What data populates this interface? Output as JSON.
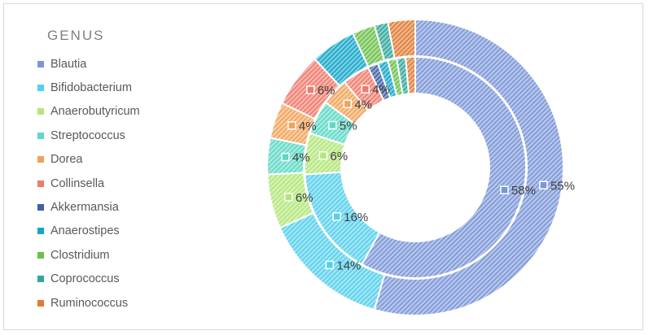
{
  "chart_data": {
    "type": "doughnut",
    "title": "",
    "legend_title": "GENUS",
    "legend_position": "left",
    "categories": [
      "Blautia",
      "Bifidobacterium",
      "Anaerobutyricum",
      "Streptococcus",
      "Dorea",
      "Collinsella",
      "Akkermansia",
      "Anaerostipes",
      "Clostridium",
      "Coprococcus",
      "Ruminococcus"
    ],
    "colors": [
      "#7b96d8",
      "#56d0ec",
      "#b3e67a",
      "#5fd9c6",
      "#f1a35a",
      "#f07a6b",
      "#3f5fa6",
      "#13a6c8",
      "#6cc04a",
      "#2fa79a",
      "#e07b33"
    ],
    "series": [
      {
        "ring": "inner",
        "values": [
          58,
          16,
          6,
          5,
          4,
          4,
          1.5,
          1.5,
          1.3,
          1.3,
          1.4
        ],
        "labels": [
          "58%",
          "16%",
          "6%",
          "5%",
          "4%",
          "4%",
          "",
          "",
          "",
          "",
          ""
        ]
      },
      {
        "ring": "outer",
        "values": [
          55,
          14,
          6,
          4,
          4,
          6,
          0,
          5,
          2.5,
          1.5,
          3
        ],
        "labels": [
          "55%",
          "14%",
          "6%",
          "4%",
          "4%",
          "6%",
          "",
          "",
          "",
          "",
          ""
        ]
      }
    ]
  }
}
